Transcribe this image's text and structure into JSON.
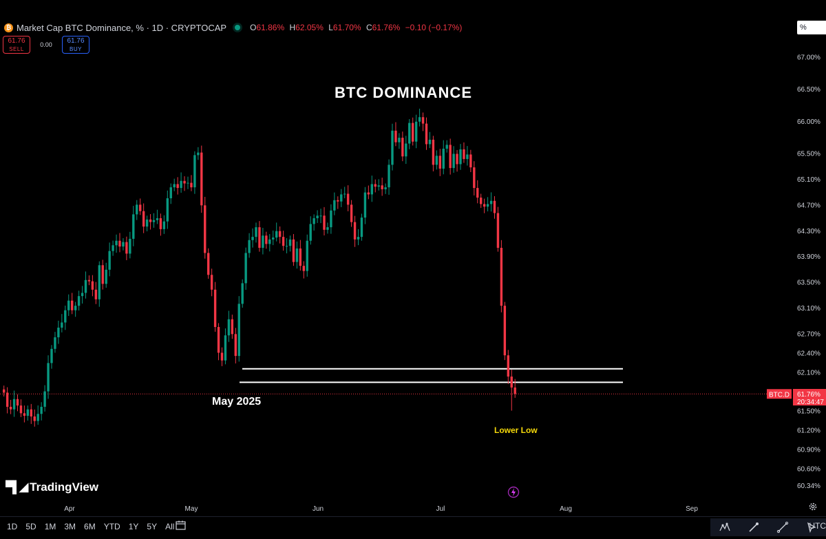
{
  "header": {
    "symbol_icon": "bitcoin-icon",
    "title": "Market Cap BTC Dominance, % · 1D · CRYPTOCAP",
    "ohlc": {
      "o_label": "O",
      "o_value": "61.86%",
      "h_label": "H",
      "h_value": "62.05%",
      "l_label": "L",
      "l_value": "61.70%",
      "c_label": "C",
      "c_value": "61.76%",
      "change": "−0.10 (−0.17%)"
    },
    "scale_button": "%"
  },
  "trade": {
    "sell_price": "61.76",
    "sell_label": "SELL",
    "spread": "0.00",
    "buy_price": "61.76",
    "buy_label": "BUY"
  },
  "annotations": {
    "title": "BTC DOMINANCE",
    "may_label": "May 2025",
    "lower_low": "Lower Low"
  },
  "price_tag": {
    "symbol": "BTC.D",
    "value": "61.76%",
    "countdown": "20:34:47"
  },
  "logo": "TradingView",
  "bottom": {
    "ranges": [
      "1D",
      "5D",
      "1M",
      "3M",
      "6M",
      "YTD",
      "1Y",
      "5Y",
      "All"
    ],
    "utc": "UTC"
  },
  "colors": {
    "up": "#089981",
    "down": "#f23645",
    "background": "#000000",
    "text": "#d1d4dc",
    "annotation": "#f5d90a"
  },
  "chart_data": {
    "type": "candlestick",
    "y_axis": {
      "ylim": [
        60.18,
        67.26
      ],
      "tick_labels": [
        "67.00%",
        "66.50%",
        "66.00%",
        "65.50%",
        "65.10%",
        "64.70%",
        "64.30%",
        "63.90%",
        "63.50%",
        "63.10%",
        "62.70%",
        "62.40%",
        "62.10%",
        "61.50%",
        "61.20%",
        "60.90%",
        "60.60%",
        "60.34%"
      ]
    },
    "x_axis": {
      "tick_labels": [
        "Apr",
        "May",
        "Jun",
        "Jul",
        "Aug",
        "Sep"
      ]
    },
    "last_price": 61.76,
    "horizontal_lines": [
      62.15,
      61.94
    ],
    "closes": [
      61.78,
      61.56,
      61.52,
      61.68,
      61.58,
      61.46,
      61.42,
      61.52,
      61.41,
      61.34,
      61.45,
      61.56,
      61.8,
      62.24,
      62.46,
      62.64,
      62.79,
      62.87,
      63.06,
      63.21,
      63.06,
      63.13,
      63.28,
      63.33,
      63.53,
      63.51,
      63.38,
      63.23,
      63.76,
      63.47,
      63.69,
      63.98,
      64.07,
      64.14,
      64.05,
      64.12,
      63.94,
      64.17,
      64.55,
      64.7,
      64.6,
      64.36,
      64.47,
      64.43,
      64.46,
      64.49,
      64.32,
      64.44,
      64.8,
      64.97,
      65.02,
      64.96,
      65.07,
      65.03,
      65.04,
      64.97,
      65.47,
      65.51,
      64.69,
      63.95,
      63.61,
      63.38,
      62.8,
      62.4,
      62.28,
      62.67,
      62.92,
      62.69,
      62.35,
      63.16,
      63.48,
      63.95,
      64.15,
      64.2,
      64.35,
      64.03,
      64.22,
      64.09,
      64.16,
      64.19,
      64.29,
      64.2,
      64.06,
      64.06,
      64.16,
      63.81,
      64.02,
      63.75,
      63.67,
      64.14,
      64.4,
      64.49,
      64.53,
      64.53,
      64.31,
      64.35,
      64.61,
      64.77,
      64.75,
      64.86,
      64.87,
      64.7,
      64.43,
      64.16,
      64.2,
      64.5,
      64.89,
      64.86,
      65.02,
      64.98,
      65.0,
      64.94,
      64.97,
      65.32,
      65.85,
      65.67,
      65.74,
      65.45,
      65.65,
      65.97,
      65.68,
      65.99,
      66.06,
      65.96,
      65.64,
      65.71,
      65.32,
      65.46,
      65.26,
      65.57,
      65.63,
      65.27,
      65.49,
      65.33,
      65.56,
      65.41,
      65.48,
      65.28,
      64.96,
      64.81,
      64.71,
      64.67,
      64.71,
      64.76,
      64.57,
      64.03,
      63.13,
      62.36,
      62.03,
      61.86,
      61.76
    ]
  }
}
